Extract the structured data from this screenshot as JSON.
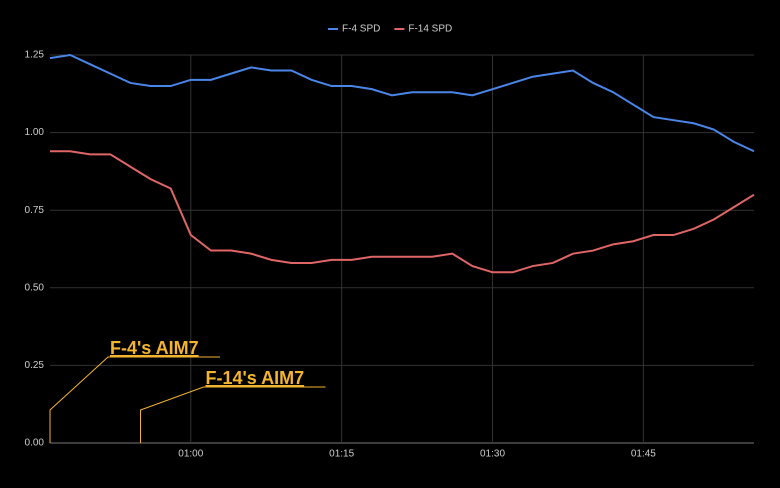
{
  "chart_data": {
    "type": "line",
    "x": [
      46,
      48,
      50,
      52,
      54,
      56,
      58,
      60,
      62,
      64,
      66,
      68,
      70,
      72,
      74,
      76,
      78,
      80,
      82,
      84,
      86,
      88,
      90,
      92,
      94,
      96,
      98,
      100,
      102,
      104,
      106,
      108,
      110,
      112,
      114,
      116
    ],
    "series": [
      {
        "name": "F-4 SPD",
        "color": "#4a86e8",
        "values": [
          1.24,
          1.25,
          1.22,
          1.19,
          1.16,
          1.15,
          1.15,
          1.17,
          1.17,
          1.19,
          1.21,
          1.2,
          1.2,
          1.17,
          1.15,
          1.15,
          1.14,
          1.12,
          1.13,
          1.13,
          1.13,
          1.12,
          1.14,
          1.16,
          1.18,
          1.19,
          1.2,
          1.16,
          1.13,
          1.09,
          1.05,
          1.04,
          1.03,
          1.01,
          0.97,
          0.94
        ]
      },
      {
        "name": "F-14 SPD",
        "color": "#e06666",
        "values": [
          0.94,
          0.94,
          0.93,
          0.93,
          0.89,
          0.85,
          0.82,
          0.67,
          0.62,
          0.62,
          0.61,
          0.59,
          0.58,
          0.58,
          0.59,
          0.59,
          0.6,
          0.6,
          0.6,
          0.6,
          0.61,
          0.57,
          0.55,
          0.55,
          0.57,
          0.58,
          0.61,
          0.62,
          0.64,
          0.65,
          0.67,
          0.67,
          0.69,
          0.72,
          0.76,
          0.8
        ]
      }
    ],
    "xlim": [
      46,
      116
    ],
    "xticks": [
      {
        "value": 60,
        "label": "01:00"
      },
      {
        "value": 75,
        "label": "01:15"
      },
      {
        "value": 90,
        "label": "01:30"
      },
      {
        "value": 105,
        "label": "01:45"
      }
    ],
    "ylim": [
      0,
      1.25
    ],
    "yticks": [
      {
        "value": 0,
        "label": "0.00"
      },
      {
        "value": 0.25,
        "label": "0.25"
      },
      {
        "value": 0.5,
        "label": "0.50"
      },
      {
        "value": 0.75,
        "label": "0.75"
      },
      {
        "value": 1,
        "label": "1.00"
      },
      {
        "value": 1.25,
        "label": "1.25"
      }
    ],
    "grid": true,
    "legend": "top",
    "annotations": [
      {
        "text": "F-4's AIM7",
        "x": 46
      },
      {
        "text": "F-14's AIM7",
        "x": 55
      }
    ],
    "annotation_color": "#f4b430"
  }
}
